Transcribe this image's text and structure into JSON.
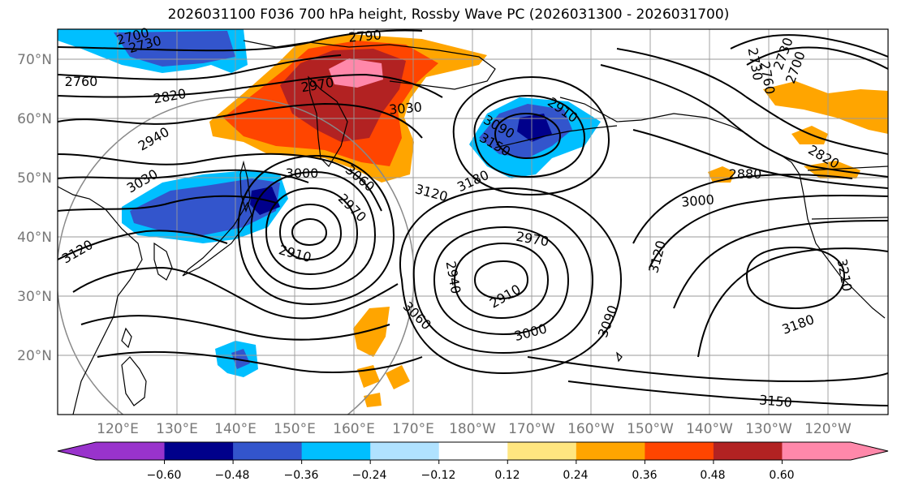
{
  "title": "2026031100 F036 700 hPa height, Rossby Wave PC (2026031300 - 2026031700)",
  "lat_labels": [
    "70°N",
    "60°N",
    "50°N",
    "40°N",
    "30°N",
    "20°N"
  ],
  "lon_labels": [
    "120°E",
    "130°E",
    "140°E",
    "150°E",
    "160°E",
    "170°E",
    "180°W",
    "170°W",
    "160°W",
    "150°W",
    "140°W",
    "130°W",
    "120°W"
  ],
  "contour_labels": [
    "2790",
    "2700",
    "2730",
    "2760",
    "2820",
    "2970",
    "3030",
    "2940",
    "3030",
    "3000",
    "3060",
    "2970",
    "2910",
    "3120",
    "3120",
    "3180",
    "3150",
    "3090",
    "2910",
    "2970",
    "2940",
    "2910",
    "3000",
    "3060",
    "3090",
    "3120",
    "3000",
    "2880",
    "2820",
    "2730",
    "2760",
    "2730",
    "2700",
    "3210",
    "3180",
    "3150"
  ],
  "colorbar": {
    "ticks": [
      "−0.60",
      "−0.48",
      "−0.36",
      "−0.24",
      "−0.12",
      "0.12",
      "0.24",
      "0.36",
      "0.48",
      "0.60"
    ],
    "colors": [
      "#9933cc",
      "#00008b",
      "#3355cc",
      "#00bfff",
      "#b0e2ff",
      "#ffffff",
      "#ffe680",
      "#ffa500",
      "#ff4500",
      "#b22222",
      "#ff88aa",
      "#ff88aa"
    ]
  },
  "palette": {
    "purple": "#9933cc",
    "navy": "#00008b",
    "royal": "#3355cc",
    "sky": "#00bfff",
    "lightblue": "#b0e2ff",
    "yellow": "#ffe680",
    "orange": "#ffa500",
    "redorange": "#ff4500",
    "firebrick": "#b22222",
    "pink": "#ff88aa"
  }
}
